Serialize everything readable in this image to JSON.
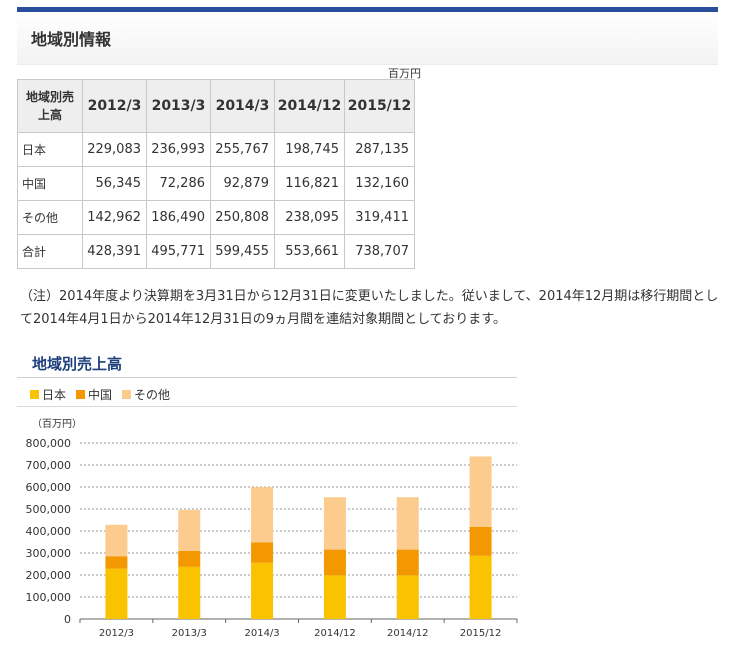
{
  "page": {
    "section_title": "地域別情報",
    "unit_label": "百万円",
    "note": "（注）2014年度より決算期を3月31日から12月31日に変更いたしました。従いまして、2014年12月期は移行期間として2014年4月1日から2014年12月31日の9ヵ月間を連結対象期間としております。"
  },
  "table": {
    "corner_line1": "地域別売",
    "corner_line2": "上高",
    "columns": [
      "2012/3",
      "2013/3",
      "2014/3",
      "2014/12",
      "2015/12"
    ],
    "rows": [
      {
        "label": "日本",
        "values": [
          "229,083",
          "236,993",
          "255,767",
          "198,745",
          "287,135"
        ]
      },
      {
        "label": "中国",
        "values": [
          "56,345",
          "72,286",
          "92,879",
          "116,821",
          "132,160"
        ]
      },
      {
        "label": "その他",
        "values": [
          "142,962",
          "186,490",
          "250,808",
          "238,095",
          "319,411"
        ]
      },
      {
        "label": "合計",
        "values": [
          "428,391",
          "495,771",
          "599,455",
          "553,661",
          "738,707"
        ]
      }
    ]
  },
  "chart_data": {
    "type": "bar",
    "stacked": true,
    "title": "地域別売上高",
    "unit": "（百万円）",
    "categories": [
      "2012/3",
      "2013/3",
      "2014/3",
      "2014/12",
      "2014/12",
      "2015/12"
    ],
    "series": [
      {
        "name": "日本",
        "color": "#f9c300",
        "values": [
          229083,
          236993,
          255767,
          198745,
          198745,
          287135
        ]
      },
      {
        "name": "中国",
        "color": "#f39800",
        "values": [
          56345,
          72286,
          92879,
          116821,
          116821,
          132160
        ]
      },
      {
        "name": "その他",
        "color": "#fccb8e",
        "values": [
          142962,
          186490,
          250808,
          238095,
          238095,
          319411
        ]
      }
    ],
    "ylim": [
      0,
      800000
    ],
    "yticks": [
      "0",
      "100,000",
      "200,000",
      "300,000",
      "400,000",
      "500,000",
      "600,000",
      "700,000",
      "800,000"
    ],
    "grid": true,
    "legend_position": "top-left"
  }
}
